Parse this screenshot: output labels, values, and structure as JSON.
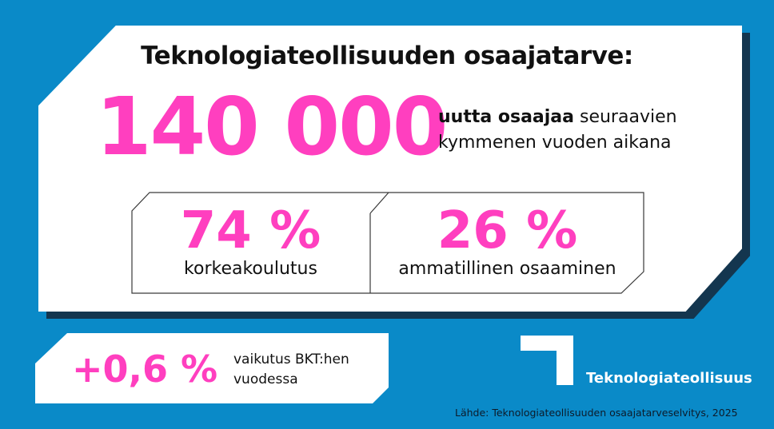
{
  "headline": "Teknologiateollisuuden osaajatarve:",
  "main_stat": {
    "value": "140 000",
    "desc_bold": "uutta osaajaa",
    "desc_line1_rest": " seuraavien",
    "desc_line2": "kymmenen vuoden aikana"
  },
  "split": [
    {
      "value": "74 %",
      "label": "korkeakoulutus"
    },
    {
      "value": "26 %",
      "label": "ammatillinen osaaminen"
    }
  ],
  "gdp": {
    "value": "+0,6 %",
    "desc_line1": "vaikutus BKT:hen",
    "desc_line2": "vuodessa"
  },
  "logo": {
    "name": "Teknologiateollisuus",
    "icon": "logo-corner-icon"
  },
  "source": "Lähde: Teknologiateollisuuden osaajatarveselvitys, 2025",
  "colors": {
    "background": "#0a8ac8",
    "accent": "#ff3fbf",
    "card": "#ffffff",
    "shadow": "#14364f"
  }
}
